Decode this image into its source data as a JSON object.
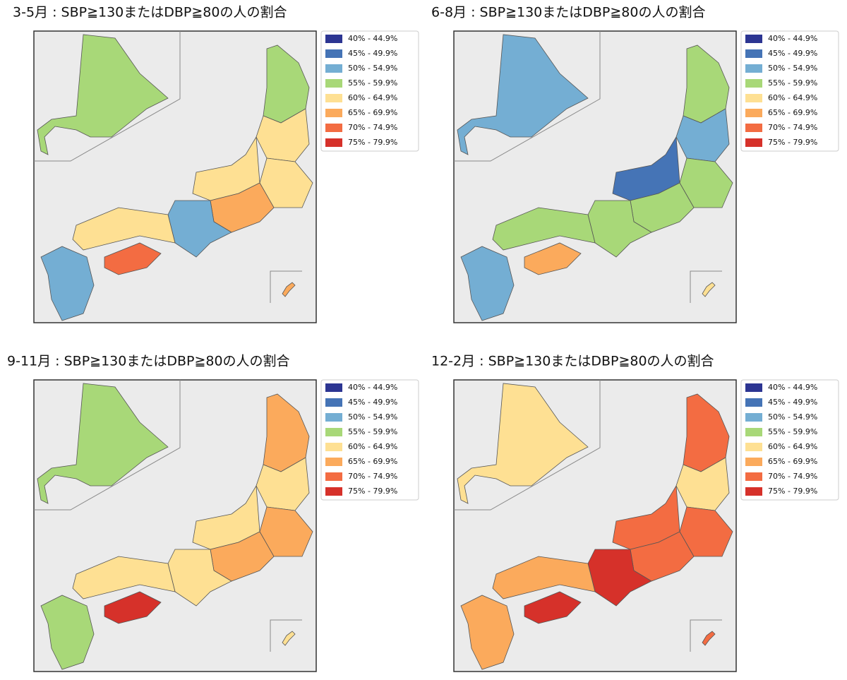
{
  "legend": [
    {
      "label": "40% - 44.9%",
      "color": "#2c3592"
    },
    {
      "label": "45% - 49.9%",
      "color": "#4574b6"
    },
    {
      "label": "50% - 54.9%",
      "color": "#74aed3"
    },
    {
      "label": "55% - 59.9%",
      "color": "#a8d878"
    },
    {
      "label": "60% - 64.9%",
      "color": "#fee093"
    },
    {
      "label": "65% - 69.9%",
      "color": "#fbaa5c"
    },
    {
      "label": "70% - 74.9%",
      "color": "#f36c42"
    },
    {
      "label": "75% - 79.9%",
      "color": "#d6312a"
    }
  ],
  "panels": [
    {
      "title": "3-5月 : SBP≧130またはDBP≧80の人の割合"
    },
    {
      "title": "6-8月 : SBP≧130またはDBP≧80の人の割合"
    },
    {
      "title": "9-11月 : SBP≧130またはDBP≧80の人の割合"
    },
    {
      "title": "12-2月 : SBP≧130またはDBP≧80の人の割合"
    }
  ]
}
